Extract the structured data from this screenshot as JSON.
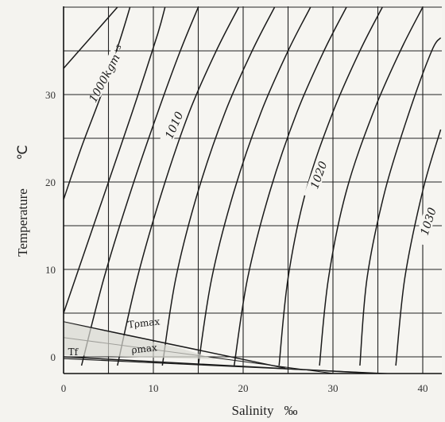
{
  "chart_data": {
    "type": "line",
    "title": "",
    "xlabel": "Salinity",
    "xunit": "‰",
    "ylabel": "Temperature",
    "yunit": "℃",
    "xlim": [
      0,
      42
    ],
    "ylim": [
      -2,
      40
    ],
    "x_ticks": [
      0,
      10,
      20,
      30,
      40
    ],
    "y_ticks": [
      0,
      10,
      20,
      30
    ],
    "grid": true,
    "isopycnals": [
      {
        "label": "1000kgm⁻³",
        "points": [
          [
            0,
            33
          ],
          [
            3,
            36.5
          ],
          [
            6,
            40
          ]
        ]
      },
      {
        "label": "",
        "points": [
          [
            0,
            18
          ],
          [
            2,
            24
          ],
          [
            4.2,
            30
          ],
          [
            6.2,
            36
          ],
          [
            7.4,
            40
          ]
        ]
      },
      {
        "label": "",
        "points": [
          [
            0,
            5
          ],
          [
            3,
            14
          ],
          [
            6,
            23
          ],
          [
            8.3,
            30
          ],
          [
            10.5,
            37
          ],
          [
            11.3,
            40
          ]
        ]
      },
      {
        "label": "",
        "points": [
          [
            2,
            -1
          ],
          [
            4.5,
            9
          ],
          [
            7.5,
            19
          ],
          [
            10.5,
            28
          ],
          [
            13,
            35
          ],
          [
            15,
            40
          ]
        ]
      },
      {
        "label": "1010",
        "points": [
          [
            6,
            -1
          ],
          [
            8.2,
            9
          ],
          [
            11,
            19
          ],
          [
            14,
            28
          ],
          [
            17,
            35
          ],
          [
            19.5,
            40
          ]
        ]
      },
      {
        "label": "",
        "points": [
          [
            11,
            -1
          ],
          [
            12.5,
            9
          ],
          [
            15,
            19
          ],
          [
            18,
            28
          ],
          [
            21,
            35
          ],
          [
            23.5,
            40
          ]
        ]
      },
      {
        "label": "",
        "points": [
          [
            15,
            -1
          ],
          [
            16.5,
            9
          ],
          [
            19,
            19
          ],
          [
            22,
            28
          ],
          [
            25,
            35
          ],
          [
            27.5,
            40
          ]
        ]
      },
      {
        "label": "1020",
        "points": [
          [
            19,
            -1
          ],
          [
            20.5,
            9
          ],
          [
            23,
            19
          ],
          [
            26,
            28
          ],
          [
            29,
            35
          ],
          [
            31.5,
            40
          ]
        ]
      },
      {
        "label": "",
        "points": [
          [
            24,
            -1
          ],
          [
            25,
            9
          ],
          [
            27,
            19
          ],
          [
            30,
            28
          ],
          [
            33,
            35
          ],
          [
            35.5,
            40
          ]
        ]
      },
      {
        "label": "",
        "points": [
          [
            28.5,
            -1
          ],
          [
            29.5,
            9
          ],
          [
            31.5,
            19
          ],
          [
            34.5,
            28
          ],
          [
            37.5,
            35
          ],
          [
            40,
            40
          ]
        ]
      },
      {
        "label": "1030",
        "points": [
          [
            33,
            -1
          ],
          [
            33.8,
            9
          ],
          [
            35.8,
            19
          ],
          [
            38.5,
            28
          ],
          [
            41,
            35
          ],
          [
            42,
            36.5
          ]
        ]
      },
      {
        "label": "",
        "points": [
          [
            37,
            -1
          ],
          [
            38,
            9
          ],
          [
            40,
            19
          ],
          [
            42,
            26
          ]
        ]
      }
    ],
    "annotations": [
      {
        "label": "Tρmax",
        "points": [
          [
            0,
            4
          ],
          [
            24.7,
            -1.3
          ]
        ]
      },
      {
        "label": "Tf",
        "points": [
          [
            0,
            0
          ],
          [
            42,
            -2.3
          ]
        ]
      }
    ],
    "annotation_labels": [
      "Tρmax",
      "Tf",
      "ρmax"
    ]
  }
}
